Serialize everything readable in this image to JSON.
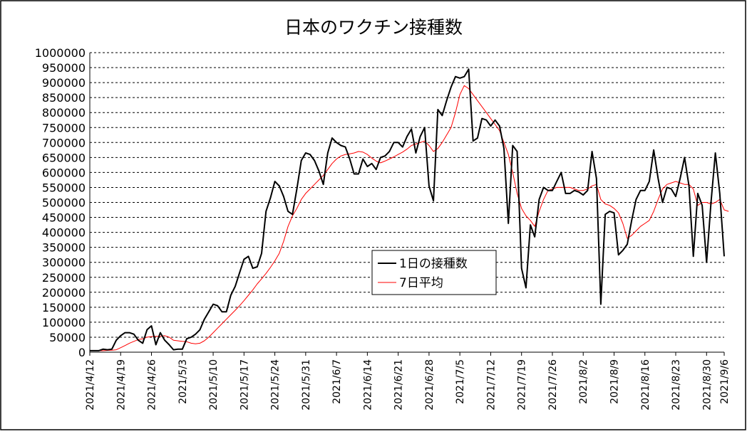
{
  "chart_data": {
    "type": "line",
    "title": "日本のワクチン接種数",
    "ylim": [
      0,
      1000000
    ],
    "y_ticks": [
      0,
      50000,
      100000,
      150000,
      200000,
      250000,
      300000,
      350000,
      400000,
      450000,
      500000,
      550000,
      600000,
      650000,
      700000,
      750000,
      800000,
      850000,
      900000,
      950000,
      1000000
    ],
    "x_ticks": [
      "2021/4/12",
      "2021/4/19",
      "2021/4/26",
      "2021/5/3",
      "2021/5/10",
      "2021/5/17",
      "2021/5/24",
      "2021/5/31",
      "2021/6/7",
      "2021/6/14",
      "2021/6/21",
      "2021/6/28",
      "2021/7/5",
      "2021/7/12",
      "2021/7/19",
      "2021/7/26",
      "2021/8/2",
      "2021/8/9",
      "2021/8/16",
      "2021/8/23",
      "2021/8/30",
      "2021/9/6"
    ],
    "x_start": "2021/4/12",
    "grid": "horizontal-dashed",
    "legend": "center",
    "colors": {
      "daily": "#000000",
      "avg7": "#ff0000",
      "grid": "#000000"
    },
    "series": [
      {
        "name": "1日の接種数",
        "color": "#000000",
        "values": [
          5000,
          5000,
          5000,
          10000,
          8000,
          10000,
          40000,
          55000,
          65000,
          65000,
          60000,
          40000,
          30000,
          75000,
          88000,
          25000,
          65000,
          40000,
          25000,
          8000,
          10000,
          10000,
          45000,
          50000,
          60000,
          75000,
          110000,
          135000,
          160000,
          155000,
          135000,
          135000,
          190000,
          220000,
          265000,
          310000,
          320000,
          280000,
          285000,
          330000,
          470000,
          515000,
          570000,
          555000,
          520000,
          470000,
          460000,
          545000,
          640000,
          665000,
          660000,
          640000,
          605000,
          560000,
          665000,
          715000,
          700000,
          690000,
          685000,
          645000,
          595000,
          595000,
          645000,
          620000,
          630000,
          610000,
          650000,
          655000,
          670000,
          700000,
          700000,
          685000,
          720000,
          745000,
          665000,
          720000,
          750000,
          555000,
          505000,
          810000,
          790000,
          840000,
          885000,
          920000,
          915000,
          920000,
          945000,
          705000,
          715000,
          780000,
          775000,
          755000,
          775000,
          755000,
          680000,
          430000,
          690000,
          670000,
          280000,
          215000,
          425000,
          385000,
          510000,
          550000,
          540000,
          540000,
          570000,
          600000,
          530000,
          530000,
          540000,
          535000,
          525000,
          540000,
          670000,
          580000,
          160000,
          460000,
          470000,
          465000,
          325000,
          340000,
          360000,
          440000,
          510000,
          540000,
          540000,
          570000,
          675000,
          580000,
          500000,
          550000,
          545000,
          520000,
          580000,
          650000,
          555000,
          320000,
          530000,
          490000,
          300000,
          500000,
          665000,
          530000,
          320000
        ]
      },
      {
        "name": "7日平均",
        "color": "#ff0000",
        "values": [
          5000,
          5000,
          5000,
          5000,
          6000,
          6500,
          8000,
          15000,
          22000,
          30000,
          36000,
          42000,
          45000,
          50000,
          52000,
          53000,
          53000,
          55000,
          50000,
          40000,
          38000,
          36000,
          35000,
          30000,
          28000,
          30000,
          38000,
          50000,
          65000,
          80000,
          95000,
          110000,
          125000,
          140000,
          155000,
          172000,
          190000,
          208000,
          228000,
          245000,
          263000,
          283000,
          305000,
          330000,
          370000,
          420000,
          455000,
          480000,
          510000,
          530000,
          545000,
          560000,
          575000,
          590000,
          610000,
          630000,
          645000,
          655000,
          660000,
          662000,
          665000,
          670000,
          668000,
          660000,
          648000,
          638000,
          632000,
          638000,
          645000,
          652000,
          660000,
          668000,
          678000,
          690000,
          695000,
          700000,
          705000,
          690000,
          670000,
          680000,
          700000,
          725000,
          750000,
          800000,
          860000,
          890000,
          880000,
          860000,
          840000,
          820000,
          800000,
          780000,
          760000,
          740000,
          700000,
          660000,
          600000,
          530000,
          480000,
          455000,
          440000,
          420000,
          470000,
          510000,
          540000,
          545000,
          550000,
          550000,
          550000,
          550000,
          545000,
          540000,
          540000,
          545000,
          555000,
          560000,
          510000,
          495000,
          490000,
          480000,
          465000,
          430000,
          380000,
          390000,
          405000,
          420000,
          430000,
          440000,
          470000,
          510000,
          545000,
          560000,
          565000,
          570000,
          565000,
          560000,
          560000,
          545000,
          490000,
          500000,
          500000,
          495000,
          500000,
          510000,
          475000,
          470000
        ]
      }
    ]
  }
}
